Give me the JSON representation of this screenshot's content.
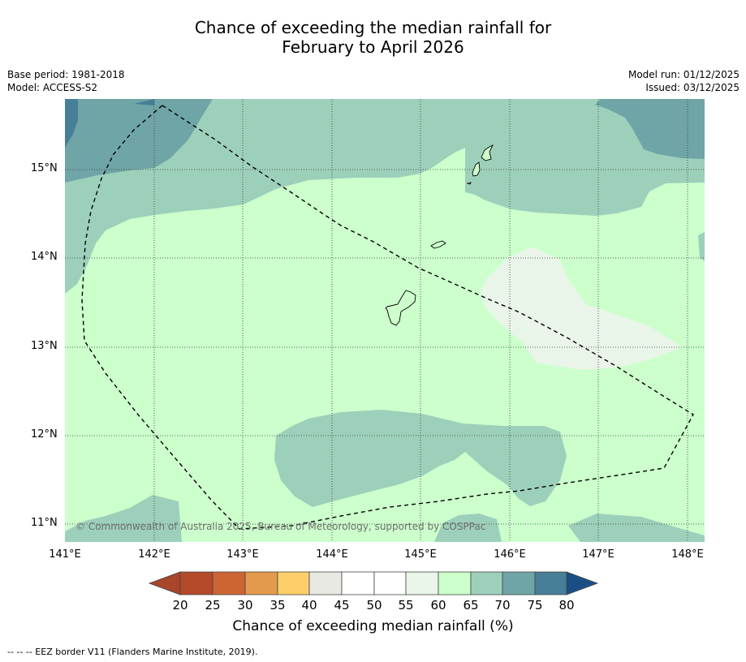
{
  "title": {
    "line1": "Chance of exceeding the median rainfall for",
    "line2": "February to April 2026"
  },
  "meta": {
    "base_period": "Base period: 1981-2018",
    "model": "Model: ACCESS-S2",
    "model_run": "Model run: 01/12/2025",
    "issued": "Issued: 03/12/2025"
  },
  "map": {
    "x_ticks": [
      "141°E",
      "142°E",
      "143°E",
      "144°E",
      "145°E",
      "146°E",
      "147°E",
      "148°E"
    ],
    "y_ticks": [
      "15°N",
      "14°N",
      "13°N",
      "12°N",
      "11°N"
    ],
    "copyright": "© Commonwealth of Australia 2025, Bureau of Meteorology, supported by COSPPac"
  },
  "colorbar": {
    "ticks": [
      "20",
      "25",
      "30",
      "35",
      "40",
      "45",
      "50",
      "55",
      "60",
      "65",
      "70",
      "75",
      "80"
    ],
    "colors": {
      "lt20": "#a8452a",
      "20_25": "#b54a2a",
      "25_30": "#cc6533",
      "30_35": "#e39a4d",
      "35_40": "#fdcf6a",
      "40_45": "#e9e9e4",
      "45_50": "#ffffff",
      "50_55": "#ffffff",
      "55_60": "#e9f5e9",
      "60_65": "#ccffcc",
      "65_70": "#9dd0ba",
      "70_75": "#6fa5a6",
      "75_80": "#477e98",
      "gt80": "#1a4f86"
    },
    "title": "Chance of exceeding median rainfall (%)"
  },
  "footnote": "--  --  -- EEZ border V11 (Flanders Marine Institute, 2019)."
}
